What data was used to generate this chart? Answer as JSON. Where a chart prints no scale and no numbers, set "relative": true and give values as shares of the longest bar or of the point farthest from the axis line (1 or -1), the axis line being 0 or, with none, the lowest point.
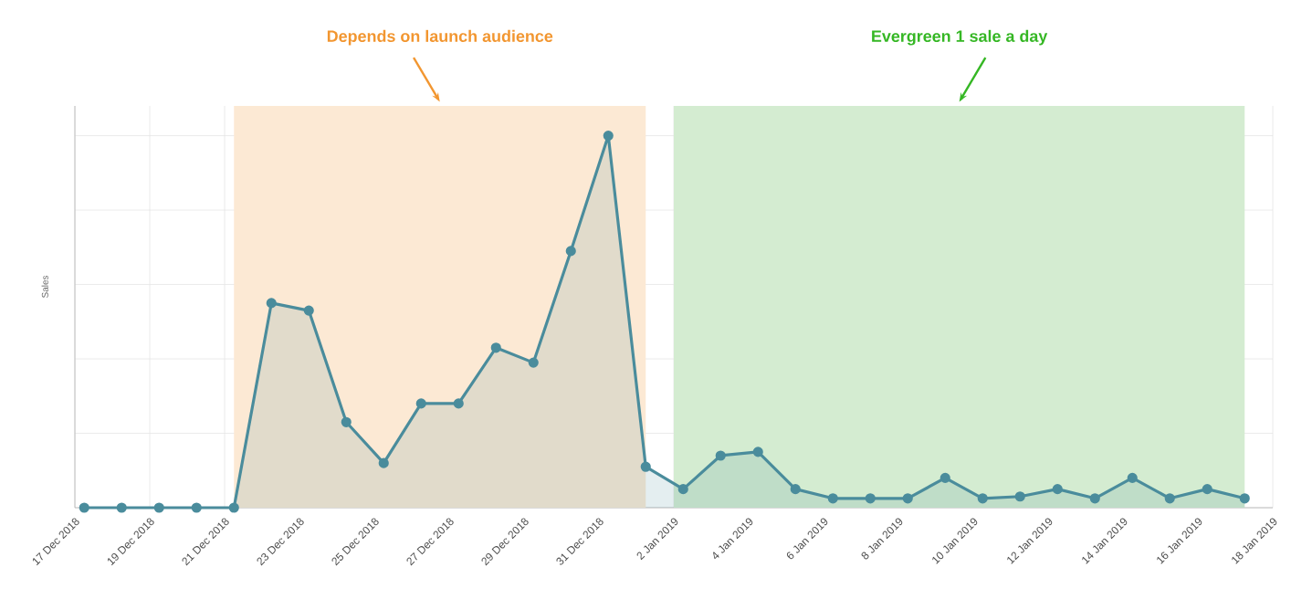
{
  "chart_data": {
    "type": "area",
    "ylabel": "Sales",
    "relative": true,
    "grid": true,
    "marker": "circle",
    "x": [
      "2018-12-17T06:00",
      "2018-12-18T06:00",
      "2018-12-19T06:00",
      "2018-12-20T06:00",
      "2018-12-21T06:00",
      "2018-12-22T06:00",
      "2018-12-23T06:00",
      "2018-12-24T06:00",
      "2018-12-25T06:00",
      "2018-12-26T06:00",
      "2018-12-27T06:00",
      "2018-12-28T06:00",
      "2018-12-29T06:00",
      "2018-12-30T06:00",
      "2018-12-31T06:00",
      "2019-01-01T06:00",
      "2019-01-02T06:00",
      "2019-01-03T06:00",
      "2019-01-04T06:00",
      "2019-01-05T06:00",
      "2019-01-06T06:00",
      "2019-01-07T06:00",
      "2019-01-08T06:00",
      "2019-01-09T06:00",
      "2019-01-10T06:00",
      "2019-01-11T06:00",
      "2019-01-12T06:00",
      "2019-01-13T06:00",
      "2019-01-14T06:00",
      "2019-01-15T06:00",
      "2019-01-16T06:00",
      "2019-01-17T06:00"
    ],
    "series": [
      {
        "color": "#4a8c9c",
        "values": [
          0,
          0,
          0,
          0,
          0,
          0.55,
          0.53,
          0.23,
          0.12,
          0.28,
          0.28,
          0.43,
          0.39,
          0.69,
          1,
          0.11,
          0.05,
          0.14,
          0.15,
          0.05,
          0.025,
          0.025,
          0.025,
          0.08,
          0.025,
          0.03,
          0.05,
          0.025,
          0.08,
          0.025,
          0.05,
          0.025
        ]
      }
    ],
    "xlim": [
      "2018-12-17",
      "2019-01-18"
    ],
    "xticks": [
      {
        "value": "2018-12-17",
        "label": "17 Dec 2018"
      },
      {
        "value": "2018-12-19",
        "label": "19 Dec 2018"
      },
      {
        "value": "2018-12-21",
        "label": "21 Dec 2018"
      },
      {
        "value": "2018-12-23",
        "label": "23 Dec 2018"
      },
      {
        "value": "2018-12-25",
        "label": "25 Dec 2018"
      },
      {
        "value": "2018-12-27",
        "label": "27 Dec 2018"
      },
      {
        "value": "2018-12-29",
        "label": "29 Dec 2018"
      },
      {
        "value": "2018-12-31",
        "label": "31 Dec 2018"
      },
      {
        "value": "2019-01-02",
        "label": "2 Jan 2019"
      },
      {
        "value": "2019-01-04",
        "label": "4 Jan 2019"
      },
      {
        "value": "2019-01-06",
        "label": "6 Jan 2019"
      },
      {
        "value": "2019-01-08",
        "label": "8 Jan 2019"
      },
      {
        "value": "2019-01-10",
        "label": "10 Jan 2019"
      },
      {
        "value": "2019-01-12",
        "label": "12 Jan 2019"
      },
      {
        "value": "2019-01-14",
        "label": "14 Jan 2019"
      },
      {
        "value": "2019-01-16",
        "label": "16 Jan 2019"
      },
      {
        "value": "2019-01-18",
        "label": "18 Jan 2019"
      }
    ],
    "bands": [
      {
        "axis": "x",
        "from": "2018-12-21T06:00",
        "to": "2019-01-01T06:00",
        "label": "Depends on launch audience",
        "color": "#fce9d4"
      },
      {
        "axis": "x",
        "from": "2019-01-02T00:00",
        "to": "2019-01-17T06:00",
        "label": "Evergreen 1 sale a day",
        "color": "#d4ecd1"
      }
    ]
  }
}
